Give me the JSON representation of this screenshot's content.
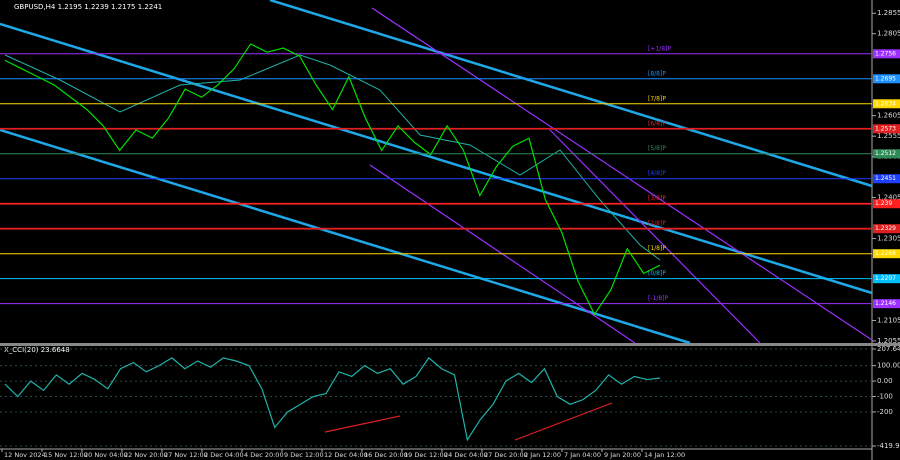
{
  "chart_data": [
    {
      "type": "line",
      "title": "GBPUSD,H4  1.2195 1.2239 1.2175 1.2241",
      "color": "#00e000",
      "values": [
        1.274,
        1.272,
        1.27,
        1.268,
        1.265,
        1.262,
        1.258,
        1.252,
        1.257,
        1.255,
        1.26,
        1.267,
        1.265,
        1.268,
        1.272,
        1.278,
        1.276,
        1.277,
        1.275,
        1.268,
        1.262,
        1.27,
        1.26,
        1.252,
        1.258,
        1.254,
        1.251,
        1.258,
        1.252,
        1.241,
        1.248,
        1.253,
        1.255,
        1.24,
        1.232,
        1.22,
        1.212,
        1.218,
        1.228,
        1.222,
        1.224
      ],
      "ylim": [
        1.205,
        1.288
      ],
      "yticks": [
        1.2855,
        1.2805,
        1.2605,
        1.2555,
        1.2505,
        1.2405,
        1.2305,
        1.2105,
        1.2055
      ],
      "levels": [
        {
          "value": 1.2756,
          "label": "[+1/8]P",
          "color": "#9b30ff"
        },
        {
          "value": 1.2695,
          "label": "[8/8]P",
          "color": "#1e90ff"
        },
        {
          "value": 1.2634,
          "label": "[7/8]P",
          "color": "#ffd700"
        },
        {
          "value": 1.2573,
          "label": "[6/8]P",
          "color": "#e02020"
        },
        {
          "value": 1.2512,
          "label": "[5/8]P",
          "color": "#2e8b57"
        },
        {
          "value": 1.2451,
          "label": "[4/8]P",
          "color": "#1e40ff"
        },
        {
          "value": 1.239,
          "label": "[3/8]P",
          "color": "#ff2020"
        },
        {
          "value": 1.2329,
          "label": "[2/8]P",
          "color": "#e02020"
        },
        {
          "value": 1.2268,
          "label": "[1/8]P",
          "color": "#ffd700"
        },
        {
          "value": 1.2207,
          "label": "[0/8]P",
          "color": "#00bfff"
        },
        {
          "value": 1.2146,
          "label": "[-1/8]P",
          "color": "#9b30ff"
        }
      ],
      "x_labels": [
        "12 Nov 2024",
        "15 Nov 12:00",
        "20 Nov 04:00",
        "22 Nov 20:00",
        "27 Nov 12:00",
        "2 Dec 04:00",
        "4 Dec 20:00",
        "9 Dec 12:00",
        "12 Dec 04:00",
        "16 Dec 20:00",
        "19 Dec 12:00",
        "24 Dec 04:00",
        "27 Dec 20:00",
        "2 Jan 12:00",
        "7 Jan 04:00",
        "9 Jan 20:00",
        "14 Jan 12:00"
      ]
    },
    {
      "type": "line",
      "title": "X_CCI(20) 23.6648",
      "color": "#20b2aa",
      "values": [
        -20,
        -100,
        0,
        -60,
        40,
        -20,
        50,
        10,
        -50,
        80,
        120,
        60,
        100,
        150,
        80,
        130,
        90,
        150,
        130,
        100,
        -50,
        -300,
        -200,
        -150,
        -100,
        -80,
        60,
        30,
        100,
        50,
        80,
        -20,
        30,
        150,
        80,
        40,
        -380,
        -250,
        -150,
        0,
        50,
        -10,
        80,
        -100,
        -150,
        -120,
        -60,
        40,
        -20,
        30,
        10,
        20
      ],
      "ylim": [
        -419.9344,
        207.6441
      ],
      "yticks": [
        207.6441,
        {
          "value": 100,
          "label": "100.00"
        },
        {
          "value": 0,
          "label": "0.00"
        },
        -100,
        -200,
        -419.9344
      ]
    }
  ]
}
